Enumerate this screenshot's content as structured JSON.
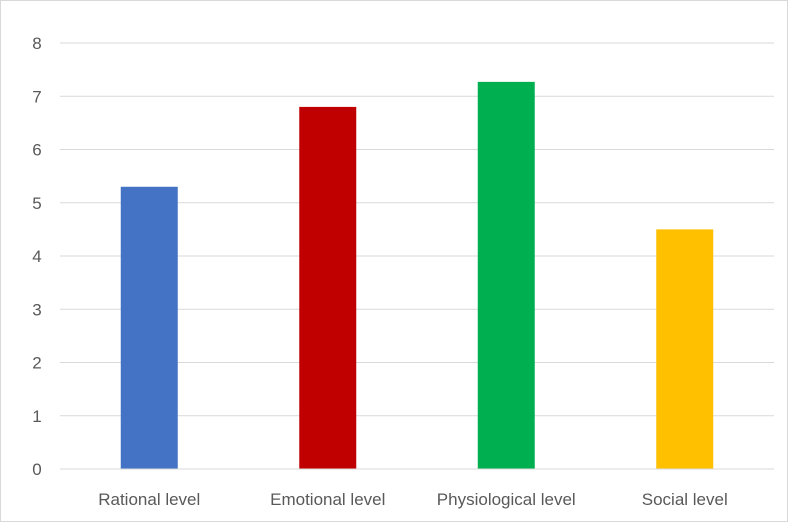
{
  "chart_data": {
    "type": "bar",
    "categories": [
      "Rational level",
      "Emotional level",
      "Physiological level",
      "Social level"
    ],
    "values": [
      5.3,
      6.8,
      7.27,
      4.5
    ],
    "colors": [
      "#4472c4",
      "#c00000",
      "#00b050",
      "#ffc000"
    ],
    "ylim": [
      0,
      8
    ],
    "yticks": [
      0,
      1,
      2,
      3,
      4,
      5,
      6,
      7,
      8
    ],
    "grid": true,
    "legend": "none"
  }
}
